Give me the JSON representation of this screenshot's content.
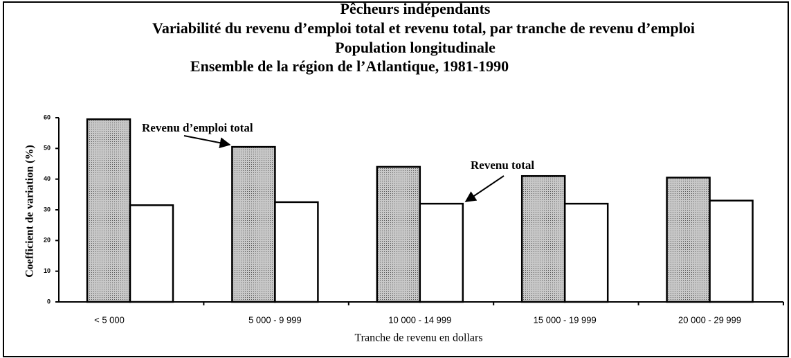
{
  "chart_data": {
    "type": "bar",
    "title": "Pêcheurs indépendants",
    "subtitle": [
      "Variabilité du revenu d’emploi total et revenu total, par tranche de revenu d’emploi",
      "Population longitudinale",
      "Ensemble de la région de l’Atlantique, 1981-1990"
    ],
    "x_label": "Tranche de revenu en dollars",
    "y_label": "Coefficient de variation (%)",
    "categories": [
      "< 5 000",
      "5 000 - 9 999",
      "10 000 - 14 999",
      "15 000 - 19 999",
      "20 000 - 29 999"
    ],
    "series": [
      {
        "name": "Revenu d’emploi total",
        "color": "#a9a9a9",
        "values": [
          59.5,
          50.5,
          44,
          41,
          40.5
        ]
      },
      {
        "name": "Revenu total",
        "color": "#ffffff",
        "values": [
          31.5,
          32.5,
          32,
          32,
          33
        ]
      }
    ],
    "ylim": [
      0,
      60
    ],
    "yticks": [
      0,
      10,
      20,
      30,
      40,
      50,
      60
    ]
  }
}
